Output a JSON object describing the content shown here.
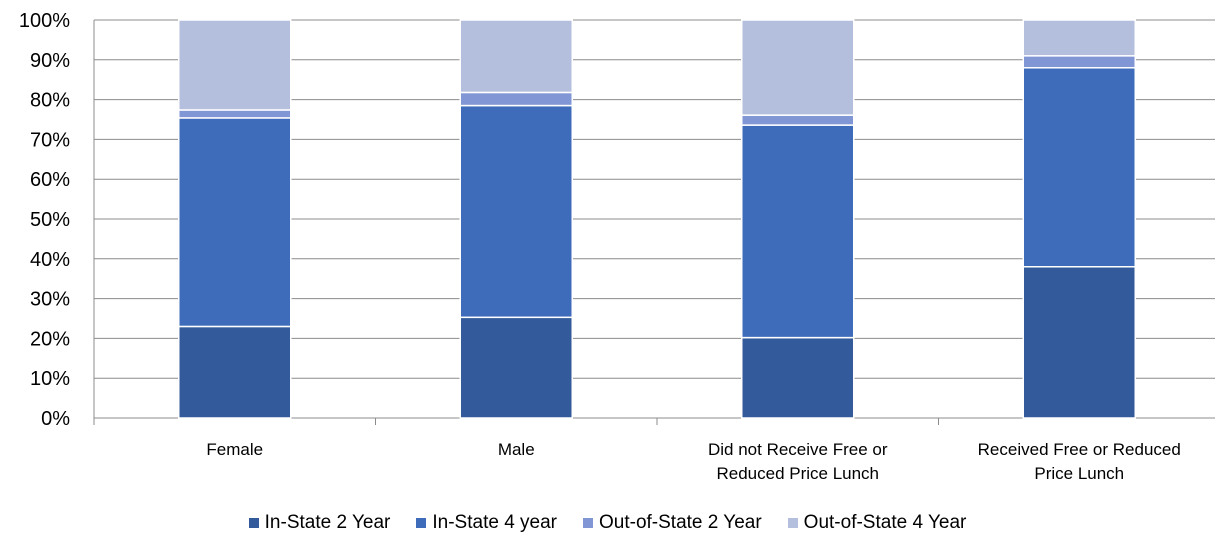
{
  "chart_data": {
    "type": "bar",
    "stacked": true,
    "percent": true,
    "categories": [
      [
        "Female"
      ],
      [
        "Male"
      ],
      [
        "Did not Receive Free or",
        "Reduced Price Lunch"
      ],
      [
        "Received Free or Reduced",
        "Price Lunch"
      ]
    ],
    "series": [
      {
        "name": "In-State 2 Year",
        "color": "#335A9A",
        "values": [
          23,
          25.3,
          20.2,
          38
        ]
      },
      {
        "name": "In-State 4 year",
        "color": "#3F6CBA",
        "values": [
          52.4,
          53.2,
          53.4,
          50
        ]
      },
      {
        "name": "Out-of-State 2 Year",
        "color": "#8196D4",
        "values": [
          2,
          3.3,
          2.5,
          3
        ]
      },
      {
        "name": "Out-of-State 4 Year",
        "color": "#B4BFDE",
        "values": [
          22.6,
          18.2,
          23.9,
          9
        ]
      }
    ],
    "ylim": [
      0,
      100
    ],
    "yticks": [
      "0%",
      "10%",
      "20%",
      "30%",
      "40%",
      "50%",
      "60%",
      "70%",
      "80%",
      "90%",
      "100%"
    ],
    "grid": true,
    "legend_position": "bottom",
    "title": "",
    "xlabel": "",
    "ylabel": ""
  }
}
